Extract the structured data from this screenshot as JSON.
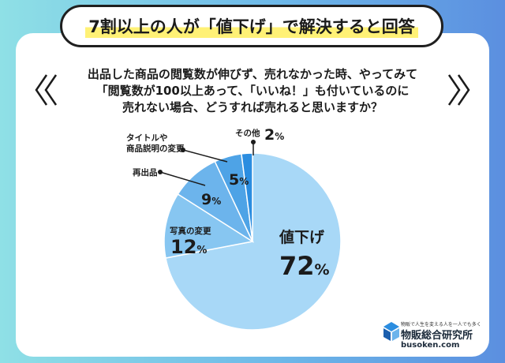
{
  "title": "7割以上の人が「値下げ」で解決すると回答",
  "question": [
    "出品した商品の閲覧数が伸びず、売れなかった時、やってみて",
    "「閲覧数が100以上あって、「いいね！」も付いているのに",
    "売れない場合、どうすれば売れると思いますか？"
  ],
  "percent_sign": "%",
  "colors": {
    "slice_main": "#a8d8f7",
    "slice_12": "#87c6f1",
    "slice_9": "#6cb4ec",
    "slice_5": "#4ea3e6",
    "slice_2": "#2b8de0",
    "border": "#ffffff",
    "text": "#1b1b1b"
  },
  "chart_data": {
    "type": "pie",
    "title": "",
    "slices": [
      {
        "label": "値下げ",
        "value": 72
      },
      {
        "label": "写真の変更",
        "value": 12
      },
      {
        "label": "再出品",
        "value": 9
      },
      {
        "label": "タイトルや\n商品説明の変更",
        "value": 5
      },
      {
        "label": "その他",
        "value": 2
      }
    ]
  },
  "logo": {
    "tagline": "物販で人生を変える人を一人でも多く",
    "name": "物販総合研究所",
    "url": "busoken.com"
  }
}
